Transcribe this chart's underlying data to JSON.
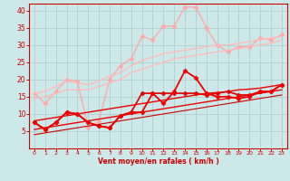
{
  "background_color": "#cce8e8",
  "grid_color": "#aacccc",
  "xlabel": "Vent moyen/en rafales ( km/h )",
  "xlabel_color": "#cc0000",
  "tick_color": "#cc0000",
  "xlim": [
    -0.5,
    23.5
  ],
  "ylim": [
    0,
    42
  ],
  "xticks": [
    0,
    1,
    2,
    3,
    4,
    5,
    6,
    7,
    8,
    9,
    10,
    11,
    12,
    13,
    14,
    15,
    16,
    17,
    18,
    19,
    20,
    21,
    22,
    23
  ],
  "yticks": [
    5,
    10,
    15,
    20,
    25,
    30,
    35,
    40
  ],
  "lines": [
    {
      "x": [
        0,
        1,
        2,
        3,
        4,
        5,
        6,
        7,
        8,
        9,
        10,
        11,
        12,
        13,
        14,
        15,
        16,
        17,
        18,
        19,
        20,
        21,
        22,
        23
      ],
      "y": [
        16.0,
        13.0,
        16.5,
        20.0,
        19.5,
        6.0,
        8.0,
        20.0,
        24.0,
        26.0,
        32.5,
        31.5,
        35.5,
        35.5,
        41.0,
        41.0,
        35.0,
        30.0,
        28.0,
        29.5,
        29.5,
        32.0,
        31.5,
        33.0
      ],
      "color": "#ffaaaa",
      "lw": 1.0,
      "marker": "D",
      "ms": 2.5,
      "linestyle": "-"
    },
    {
      "x": [
        0,
        1,
        2,
        3,
        4,
        5,
        6,
        7,
        8,
        9,
        10,
        11,
        12,
        13,
        14,
        15,
        16,
        17,
        18,
        19,
        20,
        21,
        22,
        23
      ],
      "y": [
        16.0,
        16.5,
        18.0,
        19.5,
        19.0,
        18.5,
        19.5,
        21.0,
        22.0,
        24.0,
        25.5,
        26.5,
        27.5,
        28.0,
        28.5,
        29.0,
        29.5,
        30.0,
        30.0,
        30.5,
        31.0,
        31.5,
        32.0,
        32.5
      ],
      "color": "#ffbbbb",
      "lw": 1.0,
      "marker": null,
      "ms": 0,
      "linestyle": "-"
    },
    {
      "x": [
        0,
        1,
        2,
        3,
        4,
        5,
        6,
        7,
        8,
        9,
        10,
        11,
        12,
        13,
        14,
        15,
        16,
        17,
        18,
        19,
        20,
        21,
        22,
        23
      ],
      "y": [
        14.5,
        15.0,
        16.0,
        17.0,
        17.0,
        17.0,
        18.0,
        19.0,
        20.0,
        22.0,
        23.0,
        24.0,
        25.0,
        26.0,
        26.5,
        27.0,
        27.5,
        28.0,
        28.5,
        29.0,
        29.5,
        30.0,
        30.5,
        31.5
      ],
      "color": "#ffbbbb",
      "lw": 1.0,
      "marker": null,
      "ms": 0,
      "linestyle": "-"
    },
    {
      "x": [
        0,
        1,
        2,
        3,
        4,
        5,
        6,
        7,
        8,
        9,
        10,
        11,
        12,
        13,
        14,
        15,
        16,
        17,
        18,
        19,
        20,
        21,
        22,
        23
      ],
      "y": [
        7.5,
        5.5,
        7.5,
        10.5,
        10.0,
        7.5,
        6.5,
        6.0,
        9.5,
        10.5,
        16.0,
        16.0,
        16.0,
        16.0,
        16.0,
        16.0,
        15.5,
        16.0,
        16.5,
        15.5,
        15.5,
        16.5,
        16.5,
        18.5
      ],
      "color": "#dd0000",
      "lw": 1.2,
      "marker": "P",
      "ms": 3,
      "linestyle": "-"
    },
    {
      "x": [
        0,
        1,
        2,
        3,
        4,
        5,
        6,
        7,
        8,
        9,
        10,
        11,
        12,
        13,
        14,
        15,
        16,
        17,
        18,
        19,
        20,
        21,
        22,
        23
      ],
      "y": [
        7.5,
        5.5,
        7.5,
        10.5,
        10.0,
        7.5,
        6.5,
        6.0,
        9.5,
        10.5,
        10.5,
        16.0,
        13.0,
        16.5,
        22.5,
        20.5,
        16.0,
        15.0,
        15.0,
        14.5,
        15.0,
        16.5,
        16.5,
        18.5
      ],
      "color": "#ee0000",
      "lw": 1.3,
      "marker": "D",
      "ms": 2.5,
      "linestyle": "-"
    },
    {
      "x": [
        0,
        1,
        2,
        3,
        4,
        5,
        6,
        7,
        8,
        9,
        10,
        11,
        12,
        13,
        14,
        15,
        16,
        17,
        18,
        19,
        20,
        21,
        22,
        23
      ],
      "y": [
        8.0,
        8.5,
        9.0,
        9.5,
        10.0,
        10.5,
        11.0,
        11.5,
        12.0,
        12.5,
        13.0,
        13.5,
        14.0,
        14.5,
        15.0,
        15.5,
        16.0,
        16.2,
        16.5,
        17.0,
        17.2,
        17.5,
        18.0,
        18.5
      ],
      "color": "#ee0000",
      "lw": 1.0,
      "marker": null,
      "ms": 0,
      "linestyle": "-"
    },
    {
      "x": [
        0,
        1,
        2,
        3,
        4,
        5,
        6,
        7,
        8,
        9,
        10,
        11,
        12,
        13,
        14,
        15,
        16,
        17,
        18,
        19,
        20,
        21,
        22,
        23
      ],
      "y": [
        5.5,
        6.0,
        6.5,
        7.0,
        7.5,
        8.0,
        8.5,
        9.0,
        9.5,
        10.0,
        10.5,
        11.0,
        11.5,
        12.0,
        12.5,
        13.0,
        13.5,
        14.0,
        14.5,
        15.0,
        15.5,
        16.0,
        16.5,
        17.0
      ],
      "color": "#ee0000",
      "lw": 1.0,
      "marker": null,
      "ms": 0,
      "linestyle": "-"
    },
    {
      "x": [
        0,
        1,
        2,
        3,
        4,
        5,
        6,
        7,
        8,
        9,
        10,
        11,
        12,
        13,
        14,
        15,
        16,
        17,
        18,
        19,
        20,
        21,
        22,
        23
      ],
      "y": [
        4.0,
        4.5,
        5.0,
        5.5,
        6.0,
        6.5,
        7.0,
        7.5,
        8.0,
        8.5,
        9.0,
        9.5,
        10.0,
        10.5,
        11.0,
        11.5,
        12.0,
        12.5,
        13.0,
        13.5,
        14.0,
        14.5,
        15.0,
        15.5
      ],
      "color": "#cc0000",
      "lw": 0.8,
      "marker": null,
      "ms": 0,
      "linestyle": "-"
    }
  ]
}
